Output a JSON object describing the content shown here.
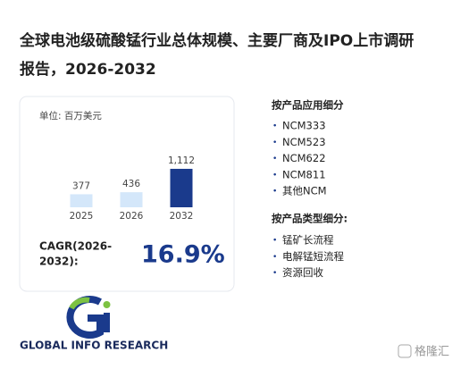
{
  "title": [
    "全球电池级硫酸锰行业总体规模、主要厂商及IPO上市调研",
    "报告，2026-2032"
  ],
  "unit": "单位: 百万美元",
  "chart_data": {
    "type": "bar",
    "categories": [
      "2025",
      "2026",
      "2032"
    ],
    "values": [
      377,
      436,
      1112
    ],
    "value_labels": [
      "377",
      "436",
      "1,112"
    ],
    "colors": [
      "#d4e7fa",
      "#d4e7fa",
      "#1a3a8c"
    ]
  },
  "cagr": {
    "label": [
      "CAGR(2026-",
      "2032):"
    ],
    "value": "16.9%"
  },
  "segments": [
    {
      "heading": "按产品应用细分",
      "items": [
        "NCM333",
        "NCM523",
        "NCM622",
        "NCM811",
        "其他NCM"
      ]
    },
    {
      "heading": "按产品类型细分:",
      "items": [
        "锰矿长流程",
        "电解锰短流程",
        "资源回收"
      ]
    }
  ],
  "logo": "GLOBAL INFO RESEARCH",
  "watermark": "格隆汇"
}
